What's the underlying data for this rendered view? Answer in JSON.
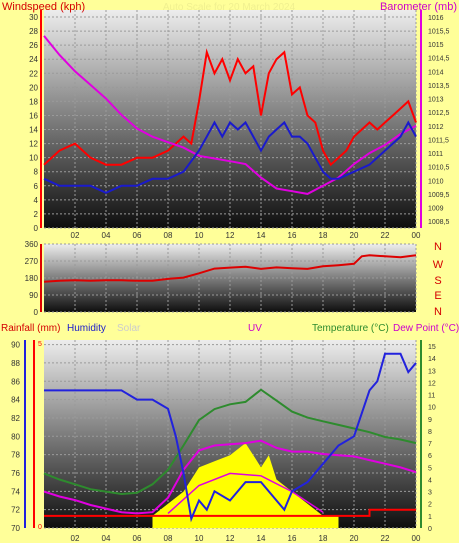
{
  "colors": {
    "background": "#ffff99",
    "wind": "#ff0000",
    "gust_avg": "#1a1acc",
    "barometer": "#e000e0",
    "direction": "#dd0000",
    "rain": "#ff0000",
    "humidity": "#2222dd",
    "solar": "#cccccc",
    "uv": "#ffff00",
    "temperature": "#2e8b2e",
    "dew_point": "#e000e0"
  },
  "panel1": {
    "left_title": "Windspeed (kph)",
    "right_title": "Barometer (mb)",
    "subtitle": "Auto Scale for 20 March 2024"
  },
  "panel2": {
    "compass": [
      "N",
      "W",
      "S",
      "E",
      "N"
    ]
  },
  "panel3": {
    "rainfall": "Rainfall (mm)",
    "humidity": "Humidity",
    "solar": "Solar",
    "uv": "UV",
    "temperature": "Temperature (°C)",
    "dewpoint": "Dew Point (°C)"
  },
  "chart_data": [
    {
      "type": "line",
      "title": "",
      "x_ticks": [
        "02",
        "04",
        "06",
        "08",
        "10",
        "12",
        "14",
        "16",
        "18",
        "20",
        "22",
        "00"
      ],
      "xlim": [
        0,
        24
      ],
      "y_left_ticks": [
        "0",
        "2",
        "4",
        "6",
        "8",
        "10",
        "12",
        "14",
        "16",
        "18",
        "20",
        "22",
        "24",
        "26",
        "28",
        "30"
      ],
      "ylim_left": [
        0,
        31
      ],
      "y_right_ticks": [
        "1008,5",
        "1009",
        "1009,5",
        "1010",
        "1010,5",
        "1011",
        "1011,5",
        "1012",
        "1012,5",
        "1013",
        "1013,5",
        "1014",
        "1014,5",
        "1015",
        "1015,5",
        "1016"
      ],
      "ylim_right": [
        1008.25,
        1016.25
      ],
      "series": [
        {
          "name": "Windspeed",
          "axis": "left",
          "x": [
            0,
            1,
            2,
            3,
            4,
            5,
            6,
            7,
            8,
            9,
            9.5,
            10,
            10.5,
            11,
            11.5,
            12,
            12.5,
            13,
            13.5,
            14,
            14.5,
            15,
            15.5,
            16,
            16.5,
            17,
            17.5,
            18,
            18.5,
            19,
            19.5,
            20,
            20.5,
            21,
            21.5,
            22,
            22.5,
            23,
            23.5,
            24
          ],
          "values": [
            9,
            11,
            12,
            10,
            9,
            9,
            10,
            10,
            11,
            13,
            12,
            18,
            25,
            22,
            24,
            21,
            24,
            22,
            23,
            16,
            22,
            24,
            25,
            19,
            20,
            16,
            15,
            11,
            9,
            10,
            11,
            13,
            14,
            15,
            14,
            15,
            16,
            17,
            18,
            15
          ]
        },
        {
          "name": "Barometer",
          "axis": "right",
          "x": [
            0,
            1,
            2,
            3,
            4,
            5,
            6,
            7,
            8,
            9,
            10,
            11,
            12,
            13,
            14,
            15,
            16,
            17,
            18,
            19,
            20,
            21,
            22,
            23,
            24
          ],
          "values": [
            1015.3,
            1014.6,
            1014.0,
            1013.5,
            1013.0,
            1012.4,
            1011.9,
            1011.6,
            1011.4,
            1011.2,
            1010.9,
            1010.8,
            1010.7,
            1010.6,
            1010.1,
            1009.7,
            1009.6,
            1009.5,
            1009.8,
            1010.1,
            1010.6,
            1011.0,
            1011.3,
            1011.7,
            1012.0
          ]
        },
        {
          "name": "Average wind",
          "axis": "left",
          "x": [
            0,
            1,
            2,
            3,
            4,
            5,
            6,
            7,
            8,
            9,
            10,
            10.5,
            11,
            11.5,
            12,
            12.5,
            13,
            13.5,
            14,
            14.5,
            15,
            15.5,
            16,
            16.5,
            17,
            17.5,
            18,
            18.5,
            19,
            20,
            21,
            22,
            23,
            23.5,
            24
          ],
          "values": [
            7,
            6,
            6,
            6,
            5,
            6,
            6,
            7,
            7,
            8,
            11,
            13,
            15,
            13,
            15,
            14,
            15,
            13,
            11,
            13,
            14,
            15,
            13,
            13,
            12,
            10,
            8,
            7,
            7,
            8,
            9,
            11,
            13,
            15,
            13
          ]
        }
      ]
    },
    {
      "type": "line",
      "title": "",
      "x_ticks": [
        "02",
        "04",
        "06",
        "08",
        "10",
        "12",
        "14",
        "16",
        "18",
        "20",
        "22",
        "00"
      ],
      "xlim": [
        0,
        24
      ],
      "y_ticks": [
        "360",
        "270",
        "180",
        "90",
        "0"
      ],
      "ylim": [
        0,
        360
      ],
      "series": [
        {
          "name": "Wind direction",
          "x": [
            0,
            1,
            2,
            3,
            4,
            5,
            6,
            7,
            8,
            9,
            10,
            11,
            12,
            13,
            14,
            15,
            16,
            17,
            18,
            19,
            20,
            20.5,
            21,
            22,
            23,
            24
          ],
          "values": [
            160,
            165,
            168,
            165,
            168,
            168,
            165,
            165,
            175,
            182,
            205,
            230,
            235,
            240,
            228,
            236,
            232,
            228,
            242,
            248,
            255,
            295,
            300,
            295,
            290,
            300
          ]
        }
      ]
    },
    {
      "type": "line",
      "title": "",
      "x_ticks": [
        "02",
        "04",
        "06",
        "08",
        "10",
        "12",
        "14",
        "16",
        "18",
        "20",
        "22",
        "00"
      ],
      "xlim": [
        0,
        24
      ],
      "y_humidity_ticks": [
        "70",
        "72",
        "74",
        "76",
        "78",
        "80",
        "82",
        "84",
        "86",
        "88",
        "90"
      ],
      "ylim_humidity": [
        70,
        90.5
      ],
      "y_temp_ticks": [
        "0",
        "1",
        "2",
        "3",
        "4",
        "5",
        "6",
        "7",
        "8",
        "9",
        "10",
        "11",
        "12",
        "13",
        "14",
        "15"
      ],
      "ylim_temp": [
        0,
        15.5
      ],
      "series": [
        {
          "name": "Humidity",
          "axis": "humidity",
          "x": [
            0,
            1,
            2,
            3,
            4,
            5,
            6,
            7,
            8,
            8.5,
            9,
            9.5,
            10,
            10.5,
            11,
            12,
            13,
            14,
            15,
            15.5,
            16,
            17,
            18,
            19,
            20,
            21,
            21.5,
            22,
            23,
            23.5,
            24
          ],
          "values": [
            85,
            85,
            85,
            85,
            85,
            85,
            84,
            84,
            83,
            80,
            76,
            71,
            73,
            72,
            74,
            73,
            75,
            75,
            73,
            72,
            74,
            75,
            77,
            79,
            80,
            85,
            86,
            89,
            89,
            87,
            88
          ]
        },
        {
          "name": "Temperature",
          "axis": "temp",
          "x": [
            0,
            1,
            2,
            3,
            4,
            5,
            6,
            7,
            8,
            9,
            10,
            11,
            12,
            13,
            14,
            15,
            16,
            17,
            18,
            19,
            20,
            21,
            22,
            23,
            24
          ],
          "values": [
            4.5,
            4.0,
            3.6,
            3.2,
            3.0,
            2.8,
            2.9,
            3.6,
            4.8,
            6.8,
            8.9,
            9.8,
            10.2,
            10.4,
            11.4,
            10.5,
            9.6,
            9.1,
            8.8,
            8.5,
            8.2,
            7.9,
            7.5,
            7.3,
            7.0
          ]
        },
        {
          "name": "Dew Point",
          "axis": "temp",
          "x": [
            0,
            1,
            2,
            3,
            4,
            5,
            6,
            7,
            8,
            9,
            10,
            11,
            12,
            13,
            14,
            15,
            16,
            17,
            18,
            19,
            20,
            21,
            22,
            23,
            24
          ],
          "values": [
            3.0,
            2.6,
            2.3,
            1.9,
            1.6,
            1.3,
            1.2,
            1.3,
            2.5,
            4.8,
            6.4,
            6.8,
            6.9,
            7.0,
            7.2,
            6.6,
            6.3,
            6.3,
            6.1,
            6.0,
            5.9,
            5.6,
            5.3,
            5.0,
            4.6
          ]
        },
        {
          "name": "UV",
          "axis": "temp",
          "fill": true,
          "x": [
            7,
            8,
            9,
            10,
            11,
            12,
            13,
            13.5,
            14,
            14.5,
            15,
            16,
            17,
            18,
            19
          ],
          "values": [
            1,
            2,
            3,
            5,
            5.5,
            6,
            7,
            6,
            5,
            6,
            4,
            3,
            2,
            1,
            1
          ]
        },
        {
          "name": "Solar",
          "axis": "temp",
          "x": [
            8,
            10,
            12,
            14,
            16,
            18
          ],
          "values": [
            1.2,
            3.5,
            4.5,
            4.3,
            3.0,
            1.3
          ]
        },
        {
          "name": "Rainfall",
          "axis": "temp",
          "x": [
            0,
            21,
            21,
            24
          ],
          "values": [
            1.0,
            1.0,
            1.5,
            1.5
          ]
        }
      ]
    }
  ]
}
